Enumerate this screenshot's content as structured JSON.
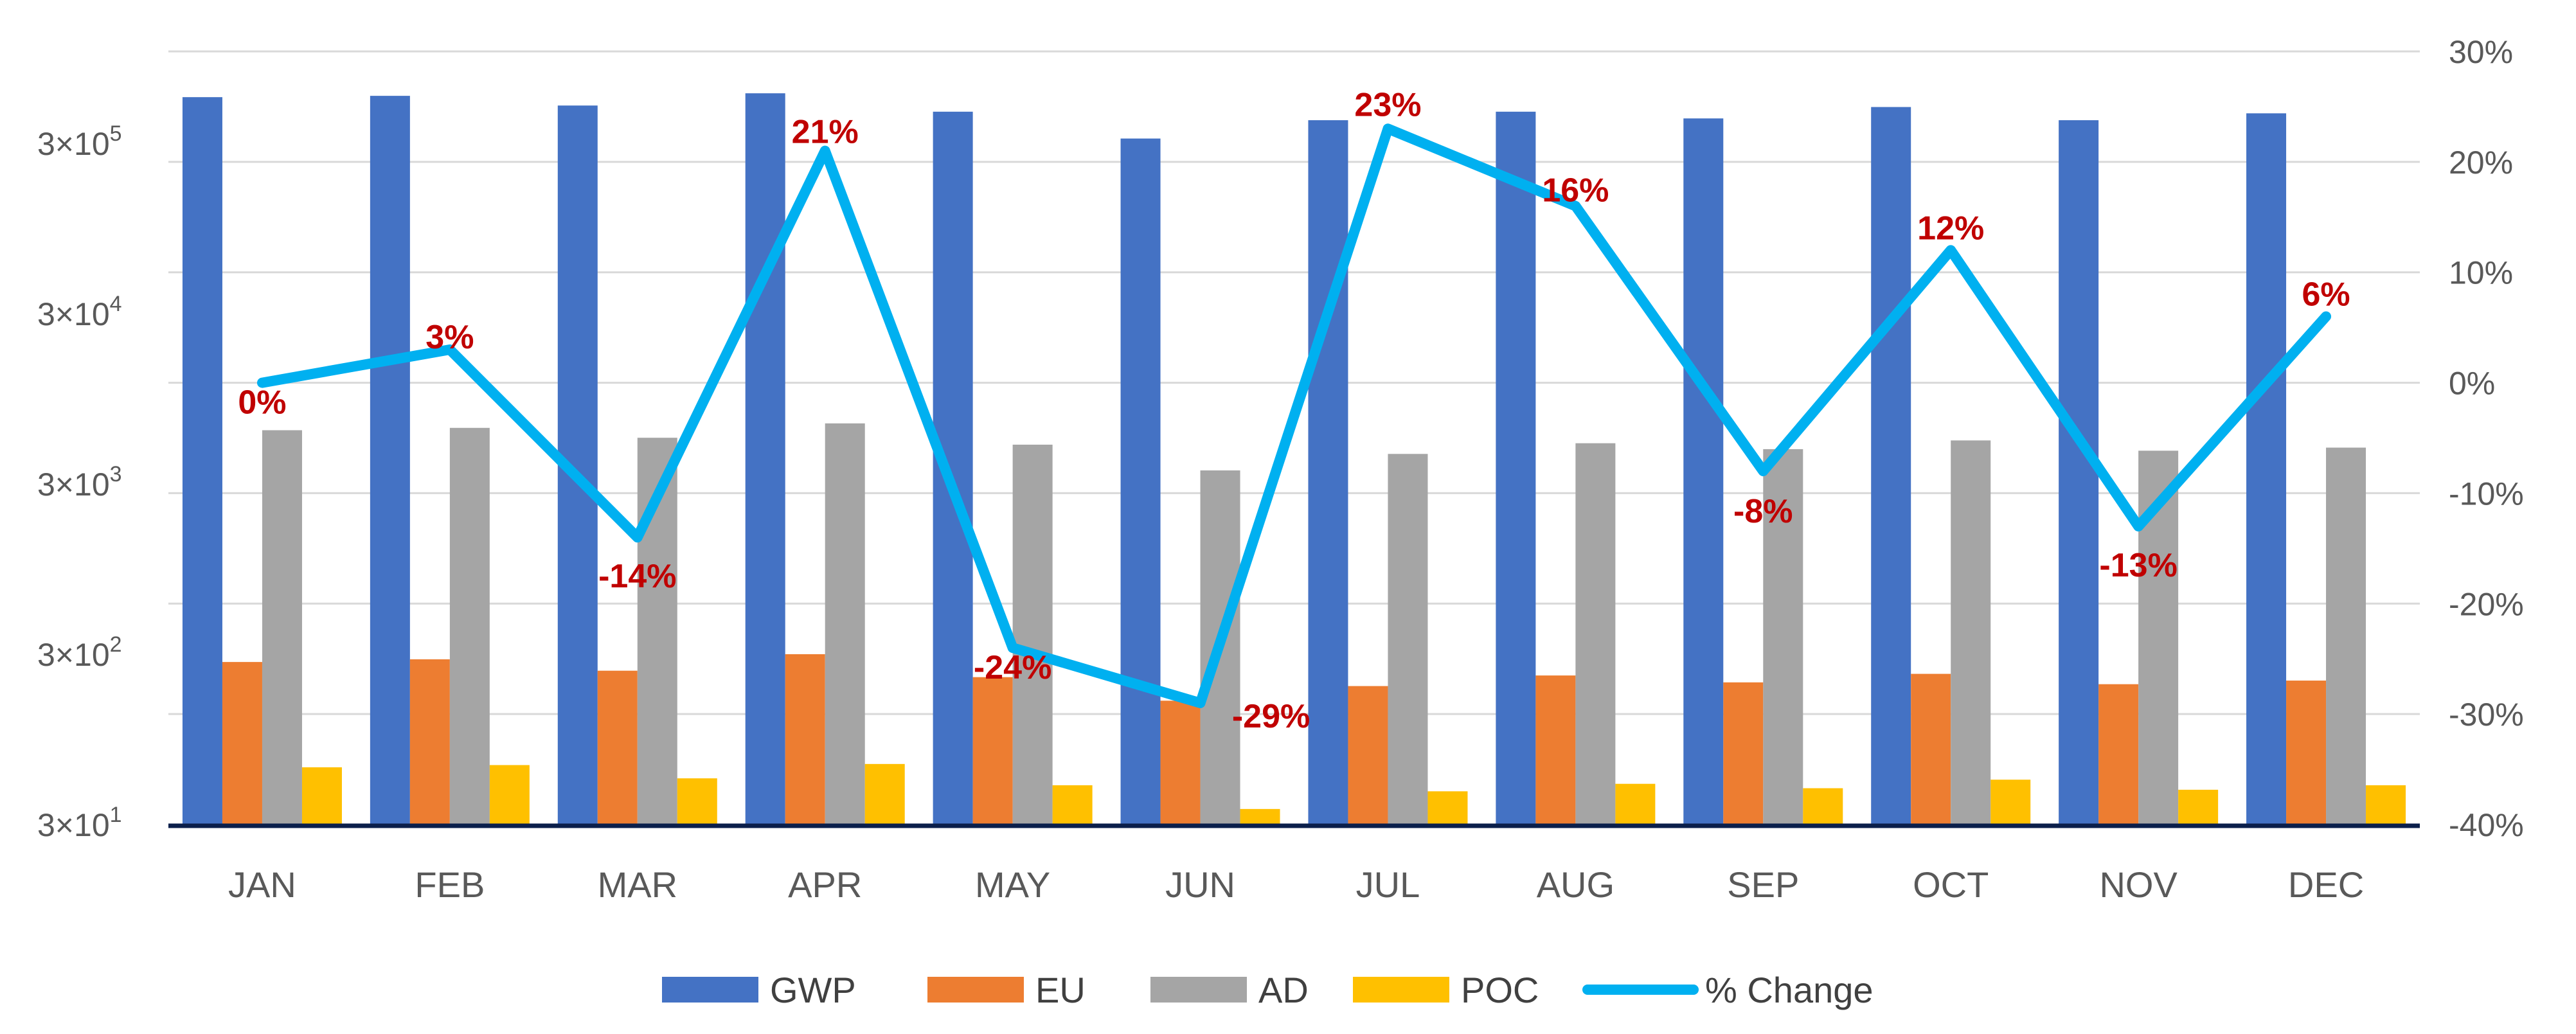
{
  "chart_data": {
    "type": "bar",
    "categories": [
      "JAN",
      "FEB",
      "MAR",
      "APR",
      "MAY",
      "JUN",
      "JUL",
      "AUG",
      "SEP",
      "OCT",
      "NOV",
      "DEC"
    ],
    "y_scale": "log",
    "ylim": [
      30,
      1000000
    ],
    "y_ticks": [
      30,
      300,
      3000,
      30000,
      300000
    ],
    "y_tick_labels": [
      {
        "base": "3×10",
        "exp": "1"
      },
      {
        "base": "3×10",
        "exp": "2"
      },
      {
        "base": "3×10",
        "exp": "3"
      },
      {
        "base": "3×10",
        "exp": "4"
      },
      {
        "base": "3×10",
        "exp": "5"
      }
    ],
    "y2lim": [
      -40,
      30
    ],
    "y2_ticks": [
      -40,
      -30,
      -20,
      -10,
      0,
      10,
      20,
      30
    ],
    "y2_tick_labels": [
      "-40%",
      "-30%",
      "-20%",
      "-10%",
      "0%",
      "10%",
      "20%",
      "30%"
    ],
    "grid": true,
    "legend_position": "bottom",
    "series": [
      {
        "name": "GWP",
        "kind": "bar",
        "color": "#4472C4",
        "values": [
          560000,
          570000,
          500000,
          590000,
          460000,
          320000,
          410000,
          460000,
          420000,
          490000,
          410000,
          450000
        ]
      },
      {
        "name": "EU",
        "kind": "bar",
        "color": "#ED7D31",
        "values": [
          270,
          280,
          240,
          300,
          220,
          160,
          195,
          225,
          205,
          230,
          200,
          210
        ]
      },
      {
        "name": "AD",
        "kind": "bar",
        "color": "#A5A5A5",
        "values": [
          6200,
          6400,
          5600,
          6800,
          5100,
          3600,
          4500,
          5200,
          4800,
          5400,
          4700,
          4900
        ]
      },
      {
        "name": "POC",
        "kind": "bar",
        "color": "#FFC000",
        "values": [
          65,
          67,
          56,
          68,
          51,
          37,
          47,
          52,
          49,
          55,
          48,
          51
        ]
      },
      {
        "name": "% Change",
        "kind": "line",
        "axis": "right",
        "color": "#00B0F0",
        "values": [
          0,
          3,
          -14,
          21,
          -24,
          -29,
          23,
          16,
          -8,
          12,
          -13,
          6
        ],
        "labels": [
          "0%",
          "3%",
          "-14%",
          "21%",
          "-24%",
          "-29%",
          "23%",
          "16%",
          "-8%",
          "12%",
          "-13%",
          "6%"
        ]
      }
    ]
  }
}
